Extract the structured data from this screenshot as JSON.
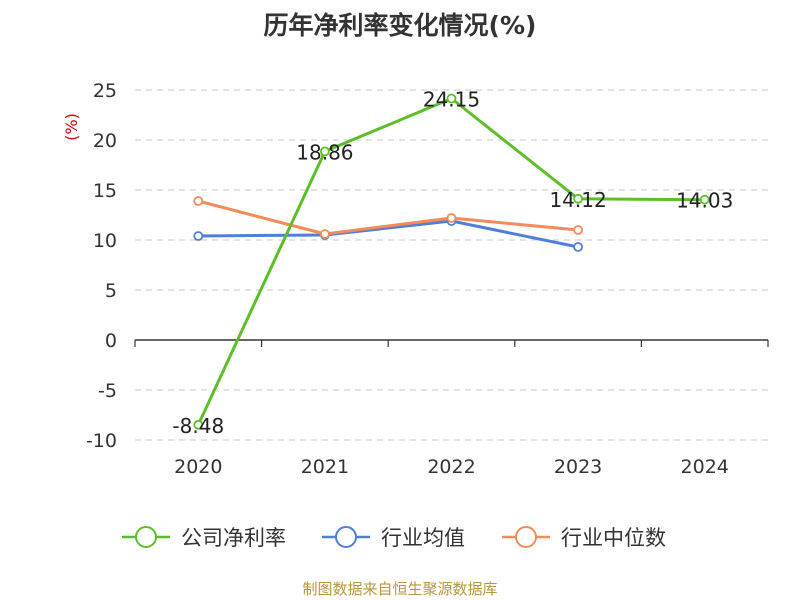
{
  "chart_data": {
    "type": "line",
    "title": "历年净利率变化情况(%)",
    "ylabel": "(%)",
    "xlabel": "",
    "categories": [
      "2020",
      "2021",
      "2022",
      "2023",
      "2024"
    ],
    "ylim": [
      -10,
      25
    ],
    "yticks": [
      25,
      20,
      15,
      10,
      5,
      0,
      -5,
      -10
    ],
    "grid": true,
    "legend_position": "bottom",
    "series": [
      {
        "name": "公司净利率",
        "color": "#5cbf2a",
        "values": [
          -8.48,
          18.86,
          24.15,
          14.12,
          14.03
        ],
        "labels": [
          "-8.48",
          "18.86",
          "24.15",
          "14.12",
          "14.03"
        ]
      },
      {
        "name": "行业均值",
        "color": "#4e7fdb",
        "values": [
          10.4,
          10.5,
          11.9,
          9.3,
          null
        ]
      },
      {
        "name": "行业中位数",
        "color": "#f28b58",
        "values": [
          13.9,
          10.6,
          12.2,
          11.0,
          null
        ]
      }
    ]
  },
  "footer": {
    "source": "制图数据来自恒生聚源数据库"
  }
}
